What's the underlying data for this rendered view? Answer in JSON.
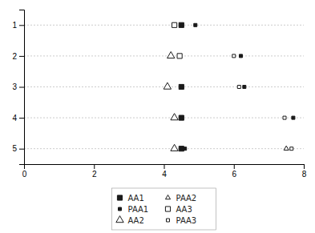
{
  "chart_data": {
    "type": "scatter",
    "series": [
      {
        "name": "AA1",
        "color": "#1a1a1a",
        "marker": "square",
        "x": [
          4.5,
          4.5,
          4.5,
          4.5
        ],
        "values": [
          1,
          3,
          4,
          5
        ]
      },
      {
        "name": "PAA1",
        "color": "#1a1a1a",
        "marker": "small-square",
        "x": [
          4.9,
          6.2,
          6.3,
          7.7,
          4.6
        ],
        "values": [
          1,
          2,
          3,
          4,
          5
        ]
      },
      {
        "name": "AA2",
        "color": "#1a1a1a",
        "marker": "triangle-open",
        "x": [
          4.2,
          4.1,
          4.3,
          4.3
        ],
        "values": [
          2,
          3,
          4,
          5
        ]
      },
      {
        "name": "PAA2",
        "color": "#1a1a1a",
        "marker": "small-triangle-open",
        "x": [
          7.5
        ],
        "values": [
          5
        ]
      },
      {
        "name": "AA3",
        "color": "#1a1a1a",
        "marker": "square-open",
        "x": [
          4.3,
          4.45
        ],
        "values": [
          1,
          2
        ]
      },
      {
        "name": "PAA3",
        "color": "#1a1a1a",
        "marker": "small-square-open",
        "x": [
          6.0,
          6.15,
          7.45,
          7.65
        ],
        "values": [
          2,
          3,
          4,
          5
        ]
      }
    ],
    "xlim": [
      0,
      8
    ],
    "xticks": [
      0,
      2,
      4,
      6,
      8
    ],
    "ylim": [
      5.5,
      0.5
    ],
    "yticks": [
      1,
      2,
      3,
      4,
      5
    ],
    "grid": true,
    "legend": "bottom"
  }
}
